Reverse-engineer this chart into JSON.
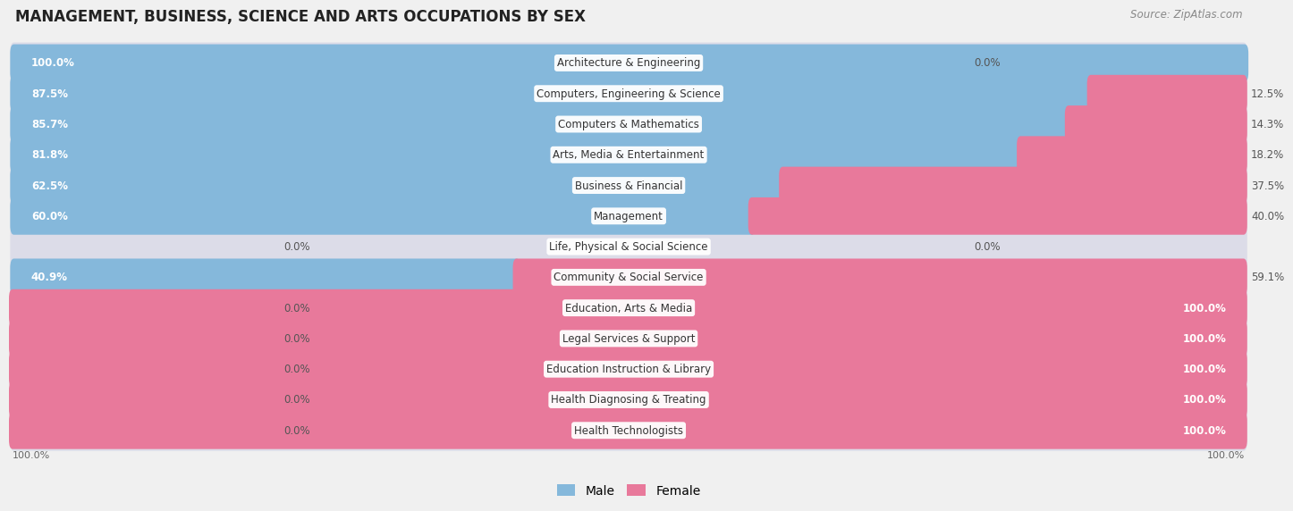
{
  "title": "MANAGEMENT, BUSINESS, SCIENCE AND ARTS OCCUPATIONS BY SEX",
  "source": "Source: ZipAtlas.com",
  "categories": [
    "Architecture & Engineering",
    "Computers, Engineering & Science",
    "Computers & Mathematics",
    "Arts, Media & Entertainment",
    "Business & Financial",
    "Management",
    "Life, Physical & Social Science",
    "Community & Social Service",
    "Education, Arts & Media",
    "Legal Services & Support",
    "Education Instruction & Library",
    "Health Diagnosing & Treating",
    "Health Technologists"
  ],
  "male": [
    100.0,
    87.5,
    85.7,
    81.8,
    62.5,
    60.0,
    0.0,
    40.9,
    0.0,
    0.0,
    0.0,
    0.0,
    0.0
  ],
  "female": [
    0.0,
    12.5,
    14.3,
    18.2,
    37.5,
    40.0,
    0.0,
    59.1,
    100.0,
    100.0,
    100.0,
    100.0,
    100.0
  ],
  "male_color": "#85b8db",
  "female_color": "#e8799b",
  "background_color": "#f0f0f0",
  "bar_bg_color": "#e0e0e8",
  "title_fontsize": 12,
  "source_fontsize": 8.5,
  "label_fontsize": 8.5,
  "category_fontsize": 8.5,
  "bar_height": 0.62,
  "legend_male": "Male",
  "legend_female": "Female"
}
